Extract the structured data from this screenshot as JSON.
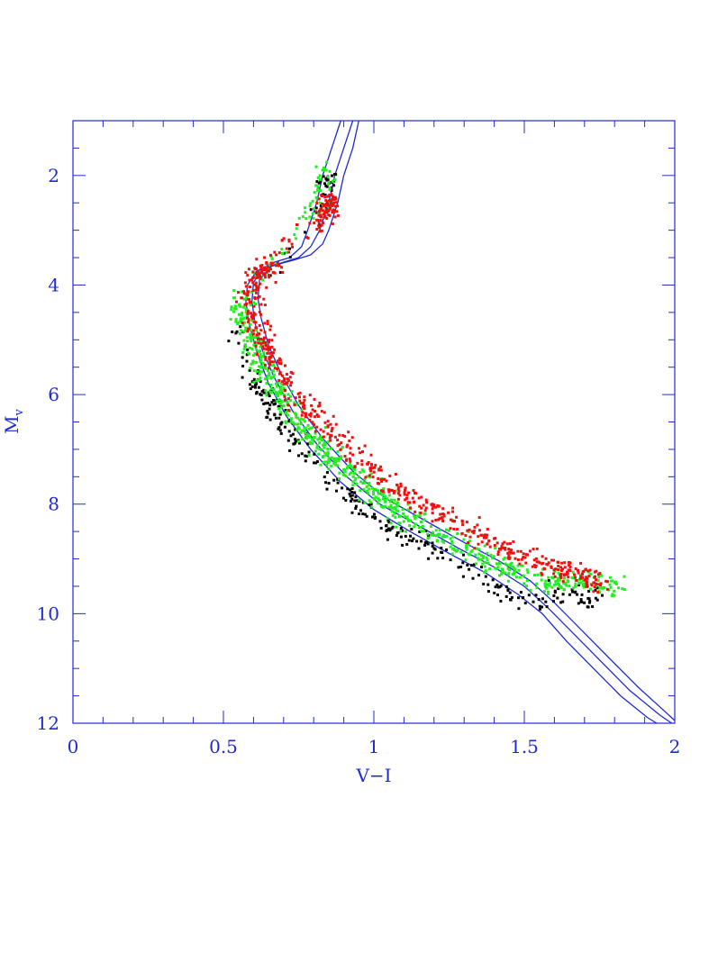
{
  "chart_data": {
    "type": "scatter",
    "title": "",
    "xlabel": "V−I",
    "ylabel": "M",
    "ylabel_subscript": "v",
    "xlim": [
      0,
      2
    ],
    "ylim": [
      12,
      1
    ],
    "y_inverted": true,
    "xticks": [
      0,
      0.5,
      1,
      1.5,
      2
    ],
    "xtick_labels": [
      "0",
      "0.5",
      "1",
      "1.5",
      "2"
    ],
    "yticks": [
      2,
      4,
      6,
      8,
      10,
      12
    ],
    "ytick_labels": [
      "2",
      "4",
      "6",
      "8",
      "10",
      "12"
    ],
    "minor_x_step": 0.1,
    "minor_y_step": 0.5,
    "colors": {
      "axes": "#1f2bd1",
      "isochrone": "#1f2bd1",
      "black_stars": "#000000",
      "green_stars": "#22ee22",
      "red_stars": "#ee1111"
    },
    "isochrones": [
      {
        "points": [
          [
            0.89,
            1.0
          ],
          [
            0.86,
            1.5
          ],
          [
            0.83,
            2.0
          ],
          [
            0.81,
            2.5
          ],
          [
            0.78,
            3.0
          ],
          [
            0.76,
            3.3
          ],
          [
            0.72,
            3.5
          ],
          [
            0.66,
            3.6
          ],
          [
            0.61,
            3.75
          ],
          [
            0.58,
            4.0
          ],
          [
            0.575,
            4.3
          ],
          [
            0.585,
            4.7
          ],
          [
            0.61,
            5.2
          ],
          [
            0.65,
            5.8
          ],
          [
            0.71,
            6.4
          ],
          [
            0.79,
            7.0
          ],
          [
            0.89,
            7.6
          ],
          [
            1.0,
            8.1
          ],
          [
            1.12,
            8.5
          ],
          [
            1.25,
            8.9
          ],
          [
            1.37,
            9.25
          ],
          [
            1.48,
            9.65
          ],
          [
            1.56,
            10.0
          ],
          [
            1.64,
            10.5
          ],
          [
            1.73,
            11.0
          ],
          [
            1.82,
            11.5
          ],
          [
            1.91,
            11.9
          ],
          [
            1.94,
            12.0
          ]
        ]
      },
      {
        "points": [
          [
            0.93,
            1.0
          ],
          [
            0.9,
            1.5
          ],
          [
            0.87,
            2.0
          ],
          [
            0.85,
            2.5
          ],
          [
            0.82,
            3.0
          ],
          [
            0.79,
            3.3
          ],
          [
            0.75,
            3.5
          ],
          [
            0.69,
            3.6
          ],
          [
            0.63,
            3.72
          ],
          [
            0.6,
            3.95
          ],
          [
            0.595,
            4.3
          ],
          [
            0.605,
            4.7
          ],
          [
            0.63,
            5.2
          ],
          [
            0.67,
            5.7
          ],
          [
            0.73,
            6.3
          ],
          [
            0.81,
            6.9
          ],
          [
            0.91,
            7.5
          ],
          [
            1.02,
            8.0
          ],
          [
            1.15,
            8.4
          ],
          [
            1.28,
            8.8
          ],
          [
            1.4,
            9.15
          ],
          [
            1.5,
            9.5
          ],
          [
            1.58,
            9.9
          ],
          [
            1.67,
            10.4
          ],
          [
            1.76,
            10.9
          ],
          [
            1.85,
            11.4
          ],
          [
            1.95,
            11.85
          ],
          [
            1.99,
            12.0
          ]
        ]
      },
      {
        "points": [
          [
            0.95,
            1.0
          ],
          [
            0.93,
            1.5
          ],
          [
            0.9,
            2.0
          ],
          [
            0.88,
            2.5
          ],
          [
            0.85,
            3.0
          ],
          [
            0.83,
            3.25
          ],
          [
            0.79,
            3.45
          ],
          [
            0.73,
            3.55
          ],
          [
            0.66,
            3.65
          ],
          [
            0.62,
            3.9
          ],
          [
            0.615,
            4.25
          ],
          [
            0.625,
            4.6
          ],
          [
            0.65,
            5.1
          ],
          [
            0.69,
            5.6
          ],
          [
            0.75,
            6.2
          ],
          [
            0.83,
            6.8
          ],
          [
            0.93,
            7.4
          ],
          [
            1.04,
            7.9
          ],
          [
            1.17,
            8.3
          ],
          [
            1.3,
            8.7
          ],
          [
            1.42,
            9.05
          ],
          [
            1.52,
            9.4
          ],
          [
            1.6,
            9.8
          ],
          [
            1.69,
            10.3
          ],
          [
            1.78,
            10.8
          ],
          [
            1.88,
            11.35
          ],
          [
            1.97,
            11.8
          ],
          [
            2.0,
            11.95
          ]
        ]
      }
    ],
    "series": [
      {
        "name": "",
        "color": "#000000",
        "cloud": [
          [
            0.82,
            2.85
          ],
          [
            0.84,
            2.2
          ],
          [
            0.86,
            2.0
          ],
          [
            0.55,
            4.9
          ],
          [
            0.56,
            5.2
          ],
          [
            0.58,
            5.4
          ],
          [
            0.6,
            5.8
          ],
          [
            0.63,
            5.9
          ],
          [
            0.66,
            6.2
          ],
          [
            0.68,
            6.4
          ],
          [
            0.72,
            6.6
          ],
          [
            0.75,
            6.9
          ],
          [
            0.8,
            7.2
          ],
          [
            0.85,
            7.5
          ],
          [
            0.9,
            7.8
          ],
          [
            0.95,
            8.0
          ],
          [
            1.0,
            8.2
          ],
          [
            1.05,
            8.4
          ],
          [
            1.1,
            8.6
          ],
          [
            1.2,
            8.8
          ],
          [
            1.3,
            9.1
          ],
          [
            1.35,
            9.3
          ],
          [
            1.42,
            9.6
          ],
          [
            1.47,
            9.75
          ],
          [
            1.55,
            9.9
          ],
          [
            1.6,
            9.6
          ],
          [
            1.7,
            9.7
          ],
          [
            1.75,
            9.8
          ]
        ],
        "spread": [
          0.025,
          0.15
        ],
        "count": 330,
        "seed": 11
      },
      {
        "name": "",
        "color": "#22ee22",
        "cloud": [
          [
            0.84,
            1.95
          ],
          [
            0.82,
            2.5
          ],
          [
            0.55,
            4.3
          ],
          [
            0.57,
            4.7
          ],
          [
            0.6,
            5.1
          ],
          [
            0.63,
            5.5
          ],
          [
            0.67,
            5.9
          ],
          [
            0.72,
            6.3
          ],
          [
            0.78,
            6.7
          ],
          [
            0.85,
            7.1
          ],
          [
            0.92,
            7.4
          ],
          [
            1.0,
            7.8
          ],
          [
            1.07,
            8.1
          ],
          [
            1.15,
            8.35
          ],
          [
            1.25,
            8.65
          ],
          [
            1.35,
            8.95
          ],
          [
            1.45,
            9.2
          ],
          [
            1.55,
            9.4
          ],
          [
            1.62,
            9.45
          ],
          [
            1.7,
            9.4
          ],
          [
            1.82,
            9.55
          ]
        ],
        "spread": [
          0.03,
          0.17
        ],
        "count": 760,
        "seed": 23
      },
      {
        "name": "",
        "color": "#ee1111",
        "cloud": [
          [
            0.82,
            2.9
          ],
          [
            0.85,
            2.45
          ],
          [
            0.86,
            2.6
          ],
          [
            0.62,
            3.75
          ],
          [
            0.66,
            3.7
          ],
          [
            0.58,
            4.0
          ],
          [
            0.6,
            4.6
          ],
          [
            0.63,
            5.0
          ],
          [
            0.67,
            5.4
          ],
          [
            0.71,
            5.8
          ],
          [
            0.77,
            6.2
          ],
          [
            0.84,
            6.6
          ],
          [
            0.91,
            7.0
          ],
          [
            0.99,
            7.4
          ],
          [
            1.07,
            7.7
          ],
          [
            1.15,
            8.0
          ],
          [
            1.25,
            8.3
          ],
          [
            1.35,
            8.6
          ],
          [
            1.45,
            8.85
          ],
          [
            1.55,
            9.05
          ],
          [
            1.62,
            9.2
          ],
          [
            1.7,
            9.3
          ],
          [
            1.75,
            9.45
          ]
        ],
        "spread": [
          0.03,
          0.15
        ],
        "count": 700,
        "seed": 37
      }
    ]
  }
}
